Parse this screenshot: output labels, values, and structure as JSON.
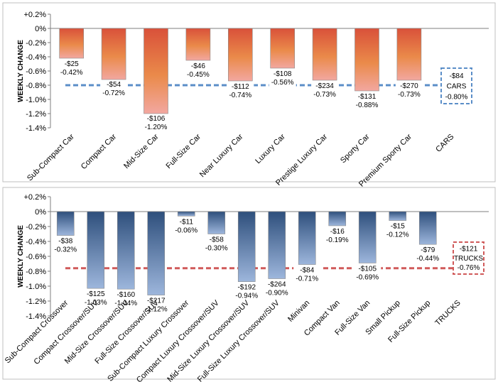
{
  "colors": {
    "panel_border": "#bfbfbf",
    "axis": "#7f7f7f",
    "cars_bar_top": "#d9513a",
    "cars_bar_mid": "#ea8a4a",
    "cars_bar_bottom": "#f2a7a0",
    "cars_avg_line": "#5b8ec8",
    "trucks_bar_top": "#2e4f7c",
    "trucks_bar_bottom": "#9db6dc",
    "trucks_avg_line": "#d05a5a"
  },
  "chart_data": [
    {
      "type": "bar",
      "ylabel": "WEEKLY CHANGE",
      "ylim": [
        -1.4,
        0.2
      ],
      "yticks": [
        "+0.2%",
        "0%",
        "-0.2%",
        "-0.4%",
        "-0.6%",
        "-0.8%",
        "-1.0%",
        "-1.2%",
        "-1.4%"
      ],
      "categories": [
        "Sub-Compact Car",
        "Compact Car",
        "Mid-Size Car",
        "Full-Size Car",
        "Near Luxury Car",
        "Luxury Car",
        "Prestige Luxury Car",
        "Sporty Car",
        "Premium Sporty Car",
        "CARS"
      ],
      "values": [
        -0.42,
        -0.72,
        -1.2,
        -0.45,
        -0.74,
        -0.56,
        -0.73,
        -0.88,
        -0.73,
        null
      ],
      "dollar_labels": [
        "-$25",
        "-$54",
        "-$106",
        "-$46",
        "-$112",
        "-$108",
        "-$234",
        "-$131",
        "-$270"
      ],
      "pct_labels": [
        "-0.42%",
        "-0.72%",
        "-1.20%",
        "-0.45%",
        "-0.74%",
        "-0.56%",
        "-0.73%",
        "-0.88%",
        "-0.73%"
      ],
      "average": {
        "value": -0.8,
        "dollar": "-$84",
        "name": "CARS",
        "pct": "-0.80%"
      }
    },
    {
      "type": "bar",
      "ylabel": "WEEKLY CHANGE",
      "ylim": [
        -1.4,
        0.2
      ],
      "yticks": [
        "+0.2%",
        "0%",
        "-0.2%",
        "-0.4%",
        "-0.6%",
        "-0.8%",
        "-1.0%",
        "-1.2%",
        "-1.4%"
      ],
      "categories": [
        "Sub-Compact Crossover",
        "Compact Crossover/SUV",
        "Mid-Size Crossover/SUV",
        "Full-Size Crossover/SUV",
        "Sub-Compact Luxury Crossover",
        "Compact Luxury Crossover/SUV",
        "Mid-Size Luxury Crossover/SUV",
        "Full-Size Luxury Crossover/SUV",
        "Minivan",
        "Compact Van",
        "Full-Size Van",
        "Small Pickup",
        "Full-Size Pickup",
        "TRUCKS"
      ],
      "values": [
        -0.32,
        -1.03,
        -1.04,
        -1.12,
        -0.06,
        -0.3,
        -0.94,
        -0.9,
        -0.71,
        -0.19,
        -0.69,
        -0.12,
        -0.44,
        null
      ],
      "dollar_labels": [
        "-$38",
        "-$125",
        "-$160",
        "-$217",
        "-$11",
        "-$58",
        "-$192",
        "-$264",
        "-$84",
        "-$16",
        "-$105",
        "-$15",
        "-$79"
      ],
      "pct_labels": [
        "-0.32%",
        "-1.03%",
        "-1.04%",
        "-1.12%",
        "-0.06%",
        "-0.30%",
        "-0.94%",
        "-0.90%",
        "-0.71%",
        "-0.19%",
        "-0.69%",
        "-0.12%",
        "-0.44%"
      ],
      "average": {
        "value": -0.76,
        "dollar": "-$121",
        "name": "TRUCKS",
        "pct": "-0.76%"
      }
    }
  ]
}
